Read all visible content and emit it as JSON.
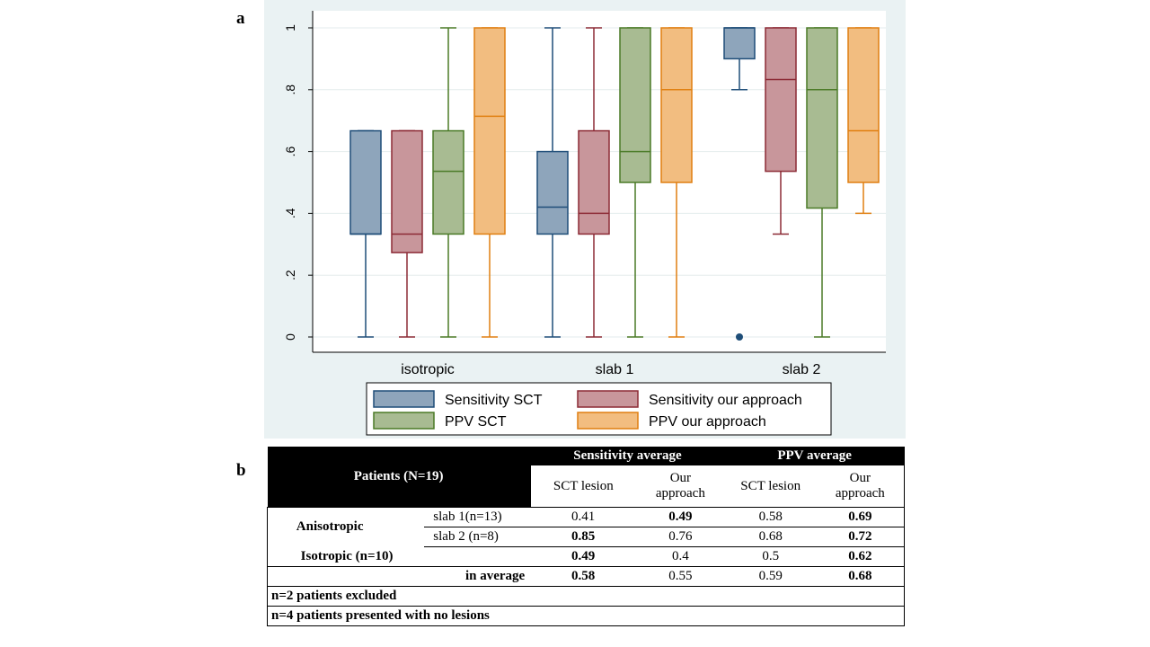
{
  "panel_labels": {
    "a": "a",
    "b": "b"
  },
  "chart_data": {
    "type": "box",
    "title": "",
    "xlabel": "",
    "ylabel": "",
    "ylim": [
      0,
      1
    ],
    "grid": true,
    "categories": [
      "isotropic",
      "slab 1",
      "slab 2"
    ],
    "y_ticks": [
      {
        "value": 0,
        "label": "0"
      },
      {
        "value": 0.2,
        "label": ".2"
      },
      {
        "value": 0.4,
        "label": ".4"
      },
      {
        "value": 0.6,
        "label": ".6"
      },
      {
        "value": 0.8,
        "label": ".8"
      },
      {
        "value": 1,
        "label": "1"
      }
    ],
    "legend_position": "bottom",
    "series": [
      {
        "name": "Sensitivity SCT",
        "fill": "#8ea5bb",
        "stroke": "#1e4d78",
        "boxes": [
          {
            "min": 0,
            "q1": 0.333,
            "median": 0.333,
            "q3": 0.667,
            "max": 0.667,
            "outliers": []
          },
          {
            "min": 0,
            "q1": 0.333,
            "median": 0.42,
            "q3": 0.6,
            "max": 1,
            "outliers": []
          },
          {
            "min": 0.8,
            "q1": 0.9,
            "median": 1,
            "q3": 1,
            "max": 1,
            "outliers": [
              0
            ]
          }
        ]
      },
      {
        "name": "Sensitivity our approach",
        "fill": "#c8969b",
        "stroke": "#8c2a35",
        "boxes": [
          {
            "min": 0,
            "q1": 0.273,
            "median": 0.333,
            "q3": 0.667,
            "max": 0.667,
            "outliers": []
          },
          {
            "min": 0,
            "q1": 0.333,
            "median": 0.4,
            "q3": 0.667,
            "max": 1,
            "outliers": []
          },
          {
            "min": 0.333,
            "q1": 0.536,
            "median": 0.833,
            "q3": 1,
            "max": 1,
            "outliers": []
          }
        ]
      },
      {
        "name": "PPV SCT",
        "fill": "#a8bb92",
        "stroke": "#4a7a26",
        "boxes": [
          {
            "min": 0,
            "q1": 0.333,
            "median": 0.536,
            "q3": 0.667,
            "max": 1,
            "outliers": []
          },
          {
            "min": 0,
            "q1": 0.5,
            "median": 0.6,
            "q3": 1,
            "max": 1,
            "outliers": []
          },
          {
            "min": 0,
            "q1": 0.417,
            "median": 0.8,
            "q3": 1,
            "max": 1,
            "outliers": []
          }
        ]
      },
      {
        "name": "PPV our approach",
        "fill": "#f2bd80",
        "stroke": "#e07f10",
        "boxes": [
          {
            "min": 0,
            "q1": 0.333,
            "median": 0.714,
            "q3": 1,
            "max": 1,
            "outliers": []
          },
          {
            "min": 0,
            "q1": 0.5,
            "median": 0.8,
            "q3": 1,
            "max": 1,
            "outliers": []
          },
          {
            "min": 0.4,
            "q1": 0.5,
            "median": 0.667,
            "q3": 1,
            "max": 1,
            "outliers": []
          }
        ]
      }
    ]
  },
  "table": {
    "patients_header": "Patients (N=19)",
    "sens_avg_header": "Sensitivity average",
    "ppv_avg_header": "PPV average",
    "col_sct_lesion": "SCT  lesion",
    "col_our_line1": "Our",
    "col_our_line2": "approach",
    "anisotropic_label": "Anisotropic",
    "rows": [
      {
        "label": "slab 1(n=13)",
        "sens_sct": "0.41",
        "sens_our": "0.49",
        "ppv_sct": "0.58",
        "ppv_our": "0.69"
      },
      {
        "label": "slab 2 (n=8)",
        "sens_sct": "0.85",
        "sens_our": "0.76",
        "ppv_sct": "0.68",
        "ppv_our": "0.72"
      },
      {
        "label": "Isotropic (n=10)",
        "sens_sct": "0.49",
        "sens_our": "0.4",
        "ppv_sct": "0.5",
        "ppv_our": "0.62"
      },
      {
        "label": "in average",
        "sens_sct": "0.58",
        "sens_our": "0.55",
        "ppv_sct": "0.59",
        "ppv_our": "0.68"
      }
    ],
    "note1": "n=2 patients excluded",
    "note2": "n=4 patients presented with no lesions"
  }
}
